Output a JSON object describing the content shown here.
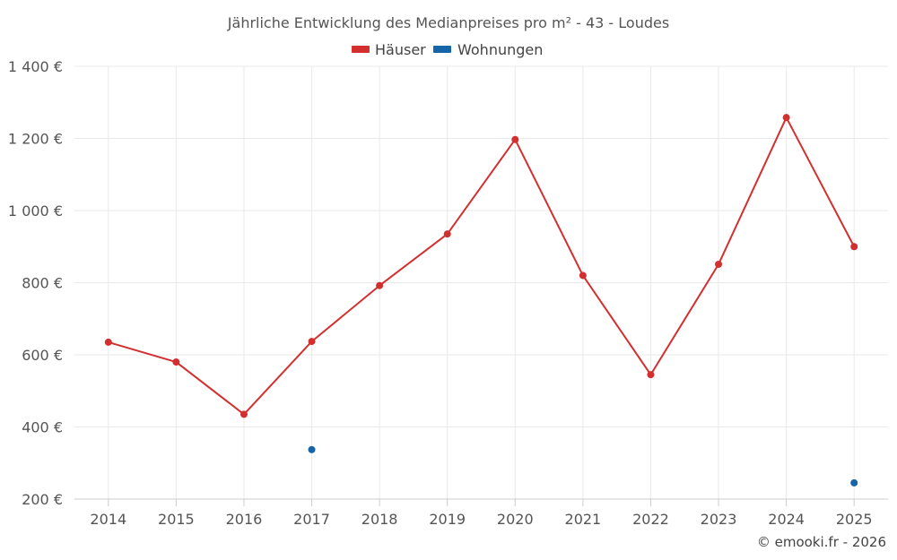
{
  "chart_data": {
    "type": "line",
    "title": "Jährliche Entwicklung des Medianpreises pro m² - 43 - Loudes",
    "x": [
      "2014",
      "2015",
      "2016",
      "2017",
      "2018",
      "2019",
      "2020",
      "2021",
      "2022",
      "2023",
      "2024",
      "2025"
    ],
    "series": [
      {
        "name": "Häuser",
        "color": "#d32f2f",
        "values": [
          635,
          580,
          435,
          637,
          792,
          935,
          1197,
          820,
          545,
          851,
          1258,
          900
        ]
      },
      {
        "name": "Wohnungen",
        "color": "#1565a8",
        "values": [
          null,
          null,
          null,
          337,
          null,
          null,
          null,
          null,
          null,
          null,
          null,
          245
        ]
      }
    ],
    "ylim": [
      200,
      1400
    ],
    "yticks": [
      "200 €",
      "400 €",
      "600 €",
      "800 €",
      "1 000 €",
      "1 200 €",
      "1 400 €"
    ],
    "ytick_values": [
      200,
      400,
      600,
      800,
      1000,
      1200,
      1400
    ],
    "grid": true,
    "legend_position": "top-center"
  },
  "credit": "© emooki.fr - 2026"
}
